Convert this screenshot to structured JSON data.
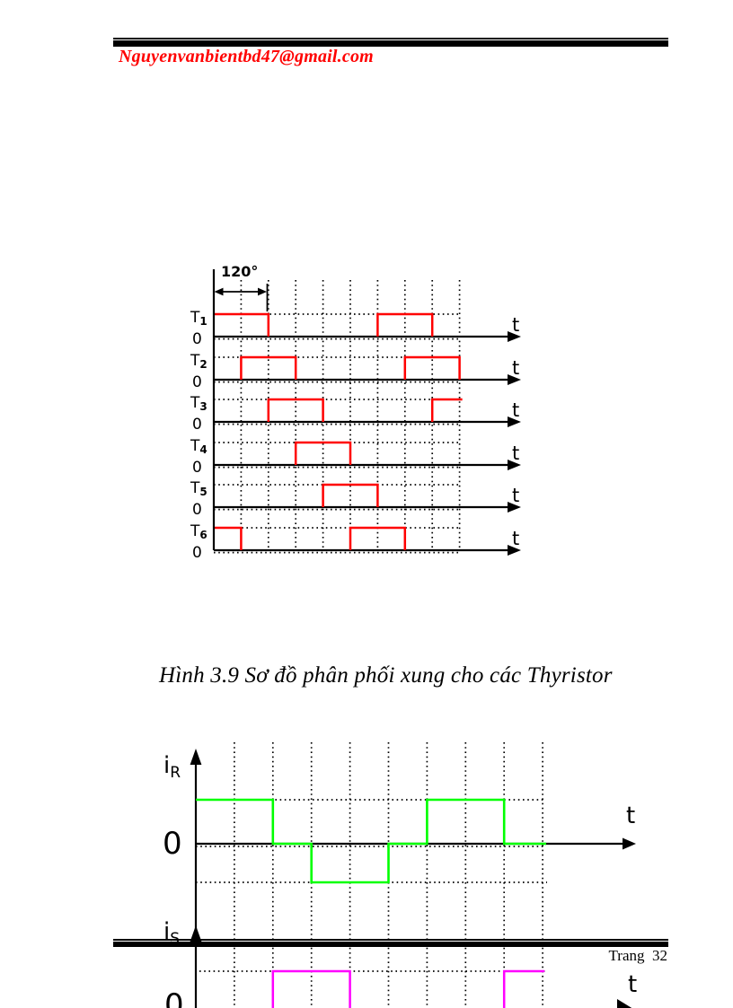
{
  "header": {
    "email": "Nguyenvanbientbd47@gmail.com"
  },
  "figure_caption": "Hình 3.9 Sơ đồ phân phối xung cho các Thyristor",
  "footer": {
    "page_label": "Trang  32"
  },
  "colors": {
    "email_red": "#ff0000",
    "pulse_red": "#ff0000",
    "current_green": "#00ff00",
    "current_magenta": "#ff00ff",
    "ink": "#000000"
  },
  "chart_data": [
    {
      "type": "step",
      "role": "gate-pulse-timing",
      "title": "Gate pulse distribution for thyristors T1..T6",
      "x_label": "t",
      "zero_label": "0",
      "annotation": {
        "text": "120°",
        "from_unit": 0,
        "to_unit": 2
      },
      "unit_deg": 60,
      "units_total": 9,
      "line_color": "#ff0000",
      "rows": [
        {
          "label": "T",
          "sub": "1",
          "pulses": [
            {
              "from": 0,
              "to": 2
            },
            {
              "from": 6,
              "to": 8
            }
          ]
        },
        {
          "label": "T",
          "sub": "2",
          "pulses": [
            {
              "from": 1,
              "to": 3
            },
            {
              "from": 7,
              "to": 9
            }
          ]
        },
        {
          "label": "T",
          "sub": "3",
          "pulses": [
            {
              "from": 2,
              "to": 4
            },
            {
              "from": 8,
              "to": 9.1,
              "open_end": true
            }
          ]
        },
        {
          "label": "T",
          "sub": "4",
          "pulses": [
            {
              "from": 3,
              "to": 5
            }
          ]
        },
        {
          "label": "T",
          "sub": "5",
          "pulses": [
            {
              "from": 4,
              "to": 6
            }
          ]
        },
        {
          "label": "T",
          "sub": "6",
          "pulses": [
            {
              "from": 0,
              "to": 1
            },
            {
              "from": 5,
              "to": 7
            }
          ]
        }
      ]
    },
    {
      "type": "step",
      "role": "phase-current-iR",
      "title": "Phase current iR",
      "label": "i",
      "sub": "R",
      "x_label": "t",
      "zero_label": "0",
      "unit_deg": 60,
      "units_total": 9,
      "line_color": "#00ff00",
      "segments": [
        {
          "from": 0,
          "to": 2,
          "level": 1
        },
        {
          "from": 2,
          "to": 3,
          "level": 0
        },
        {
          "from": 3,
          "to": 5,
          "level": -1
        },
        {
          "from": 5,
          "to": 6,
          "level": 0
        },
        {
          "from": 6,
          "to": 8,
          "level": 1
        },
        {
          "from": 8,
          "to": 9,
          "level": 0
        }
      ]
    },
    {
      "type": "step",
      "role": "phase-current-iS",
      "title": "Phase current iS (cut off by page bottom)",
      "label": "i",
      "sub": "S",
      "x_label": "t",
      "zero_label": "0",
      "unit_deg": 60,
      "units_total": 9,
      "line_color": "#ff00ff",
      "pulses": [
        {
          "from": 2,
          "to": 4,
          "level": 1
        },
        {
          "from": 8,
          "to": 9.05,
          "level": 1,
          "open_end": true
        }
      ]
    }
  ]
}
